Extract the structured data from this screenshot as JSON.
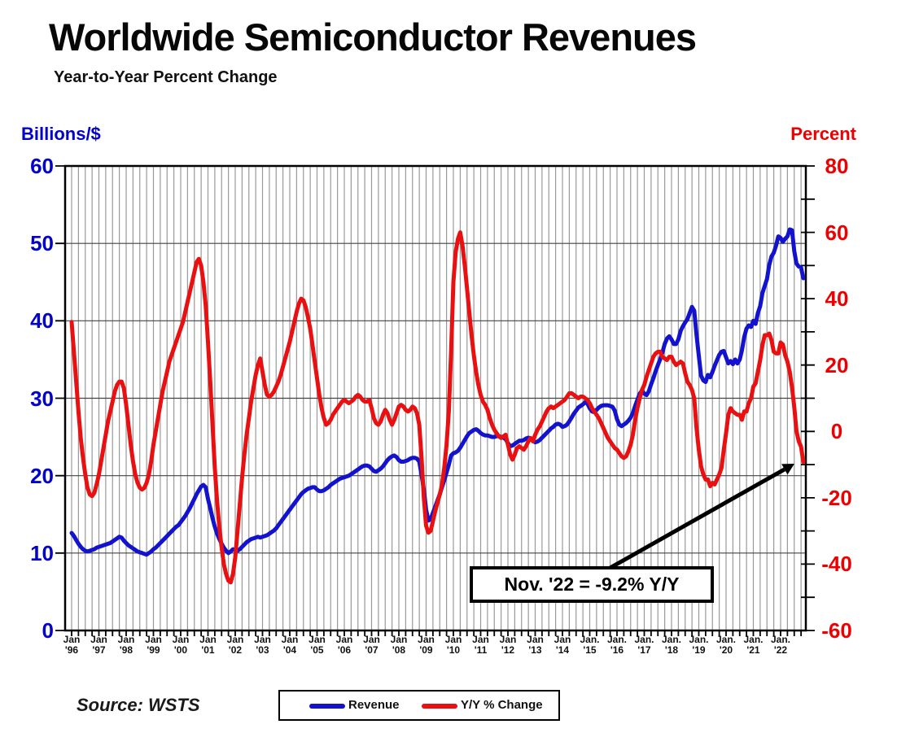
{
  "title": "Worldwide Semiconductor Revenues",
  "subtitle": "Year-to-Year Percent Change",
  "left_axis": {
    "label": "Billions/$",
    "color": "#0202cc",
    "ticks": [
      "60",
      "50",
      "40",
      "30",
      "20",
      "10",
      "0"
    ],
    "tick_values": [
      60,
      50,
      40,
      30,
      20,
      10,
      0
    ]
  },
  "right_axis": {
    "label": "Percent",
    "color": "#ee0000",
    "ticks": [
      "80",
      "60",
      "40",
      "20",
      "0",
      "-20",
      "-40",
      "-60"
    ],
    "tick_values": [
      80,
      60,
      40,
      20,
      0,
      -20,
      -40,
      -60
    ]
  },
  "x_axis": {
    "labels": [
      {
        "m": "Jan",
        "y": "'96"
      },
      {
        "m": "Jan",
        "y": "'97"
      },
      {
        "m": "Jan",
        "y": "'98"
      },
      {
        "m": "Jan",
        "y": "'99"
      },
      {
        "m": "Jan",
        "y": "'00"
      },
      {
        "m": "Jan",
        "y": "'01"
      },
      {
        "m": "Jan",
        "y": "'02"
      },
      {
        "m": "Jan",
        "y": "'03"
      },
      {
        "m": "Jan",
        "y": "'04"
      },
      {
        "m": "Jan",
        "y": "'05"
      },
      {
        "m": "Jan",
        "y": "'06"
      },
      {
        "m": "Jan",
        "y": "'07"
      },
      {
        "m": "Jan",
        "y": "'08"
      },
      {
        "m": "Jan",
        "y": "'09"
      },
      {
        "m": "Jan",
        "y": "'10"
      },
      {
        "m": "Jan",
        "y": "'11"
      },
      {
        "m": "Jan",
        "y": "'12"
      },
      {
        "m": "Jan",
        "y": "'13"
      },
      {
        "m": "Jan",
        "y": "'14"
      },
      {
        "m": "Jan.",
        "y": "'15"
      },
      {
        "m": "Jan.",
        "y": "'16"
      },
      {
        "m": "Jan.",
        "y": "'17"
      },
      {
        "m": "Jan.",
        "y": "'18"
      },
      {
        "m": "Jan.",
        "y": "'19"
      },
      {
        "m": "Jan.",
        "y": "'20"
      },
      {
        "m": "Jan.",
        "y": "'21"
      },
      {
        "m": "Jan.",
        "y": "'22"
      }
    ]
  },
  "annotation": {
    "text": "Nov. '22 = -9.2% Y/Y"
  },
  "source": {
    "text": "Source: WSTS"
  },
  "legend": {
    "items": [
      {
        "label": "Revenue",
        "color": "#1313ce"
      },
      {
        "label": "Y/Y % Change",
        "color": "#e81010"
      }
    ]
  },
  "chart_data": {
    "type": "line",
    "title": "Worldwide Semiconductor Revenues",
    "subtitle": "Year-to-Year Percent Change",
    "x_unit": "month",
    "x_start": "1996-01",
    "x_end": "2022-11",
    "x_tick_years": [
      "'96",
      "'97",
      "'98",
      "'99",
      "'00",
      "'01",
      "'02",
      "'03",
      "'04",
      "'05",
      "'06",
      "'07",
      "'08",
      "'09",
      "'10",
      "'11",
      "'12",
      "'13",
      "'14",
      "'15",
      "'16",
      "'17",
      "'18",
      "'19",
      "'20",
      "'21",
      "'22"
    ],
    "left_ylabel": "Billions/$",
    "right_ylabel": "Percent",
    "left_ylim": [
      0,
      60
    ],
    "right_ylim": [
      -60,
      80
    ],
    "gridlines": {
      "vertical": "quarterly",
      "horizontal_step_left_axis": 10
    },
    "series": [
      {
        "name": "Revenue",
        "axis": "left",
        "unit": "$B/month",
        "color": "#1313ce",
        "values": [
          12.6,
          12.2,
          11.7,
          11.2,
          10.8,
          10.5,
          10.3,
          10.2,
          10.3,
          10.4,
          10.5,
          10.7,
          10.8,
          10.9,
          11.0,
          11.1,
          11.2,
          11.3,
          11.5,
          11.7,
          11.9,
          12.1,
          12.0,
          11.6,
          11.3,
          11.0,
          10.8,
          10.6,
          10.4,
          10.2,
          10.1,
          10.0,
          9.9,
          9.8,
          10.0,
          10.2,
          10.5,
          10.7,
          11.0,
          11.3,
          11.6,
          11.9,
          12.2,
          12.5,
          12.8,
          13.1,
          13.4,
          13.6,
          14.0,
          14.4,
          14.8,
          15.3,
          15.8,
          16.4,
          17.0,
          17.6,
          18.1,
          18.6,
          18.8,
          18.5,
          17.0,
          15.8,
          14.5,
          13.4,
          12.5,
          11.8,
          11.2,
          10.7,
          10.3,
          10.0,
          10.2,
          10.5,
          10.4,
          10.3,
          10.5,
          10.8,
          11.1,
          11.4,
          11.6,
          11.8,
          11.9,
          12.0,
          12.1,
          12.0,
          12.1,
          12.2,
          12.3,
          12.5,
          12.7,
          12.9,
          13.2,
          13.6,
          14.0,
          14.4,
          14.8,
          15.2,
          15.6,
          16.0,
          16.4,
          16.8,
          17.2,
          17.6,
          17.9,
          18.1,
          18.3,
          18.4,
          18.5,
          18.5,
          18.2,
          18.0,
          18.0,
          18.1,
          18.3,
          18.5,
          18.8,
          19.0,
          19.2,
          19.4,
          19.6,
          19.7,
          19.8,
          19.9,
          20.0,
          20.2,
          20.4,
          20.6,
          20.8,
          21.0,
          21.2,
          21.3,
          21.3,
          21.2,
          20.9,
          20.6,
          20.5,
          20.7,
          20.9,
          21.2,
          21.6,
          22.0,
          22.3,
          22.5,
          22.6,
          22.4,
          22.0,
          21.8,
          21.8,
          21.9,
          22.0,
          22.2,
          22.3,
          22.3,
          22.2,
          21.8,
          20.1,
          18.2,
          15.6,
          14.2,
          14.4,
          15.2,
          16.0,
          16.8,
          17.6,
          18.5,
          19.4,
          20.4,
          21.4,
          22.6,
          22.9,
          23.0,
          23.2,
          23.6,
          24.1,
          24.6,
          25.1,
          25.5,
          25.7,
          25.9,
          26.0,
          25.8,
          25.5,
          25.3,
          25.2,
          25.2,
          25.1,
          25.0,
          25.0,
          25.1,
          25.1,
          25.0,
          24.9,
          24.7,
          24.2,
          23.8,
          23.9,
          24.1,
          24.3,
          24.5,
          24.5,
          24.6,
          24.8,
          24.9,
          24.8,
          24.5,
          24.3,
          24.4,
          24.6,
          24.9,
          25.2,
          25.5,
          25.8,
          26.1,
          26.3,
          26.6,
          26.7,
          26.6,
          26.3,
          26.4,
          26.6,
          27.0,
          27.5,
          28.0,
          28.4,
          28.8,
          29.0,
          29.2,
          29.5,
          29.3,
          28.7,
          28.3,
          28.2,
          28.5,
          28.8,
          29.0,
          29.1,
          29.1,
          29.1,
          29.0,
          28.9,
          28.4,
          27.3,
          26.6,
          26.4,
          26.6,
          26.8,
          27.1,
          27.5,
          28.1,
          29.0,
          29.8,
          30.6,
          31.0,
          30.6,
          30.4,
          30.9,
          31.8,
          32.6,
          33.5,
          34.3,
          35.0,
          35.9,
          37.0,
          37.7,
          38.0,
          37.6,
          37.0,
          37.0,
          37.6,
          38.7,
          39.3,
          39.8,
          40.2,
          41.0,
          41.8,
          41.3,
          38.2,
          35.5,
          32.9,
          32.3,
          32.1,
          33.0,
          32.7,
          33.4,
          34.2,
          34.9,
          35.6,
          36.0,
          36.1,
          35.3,
          34.5,
          34.8,
          34.4,
          35.0,
          34.5,
          35.0,
          36.2,
          37.9,
          39.0,
          39.4,
          39.2,
          40.0,
          39.6,
          41.0,
          41.9,
          43.6,
          44.5,
          45.4,
          47.2,
          48.3,
          48.8,
          49.7,
          50.9,
          50.7,
          50.2,
          50.6,
          50.9,
          51.8,
          51.7,
          49.0,
          47.4,
          47.0,
          46.9,
          45.5
        ]
      },
      {
        "name": "Y/Y % Change",
        "axis": "right",
        "unit": "%",
        "color": "#e81010",
        "values": [
          33,
          24,
          15,
          6,
          -2,
          -8,
          -13,
          -17,
          -19,
          -19.5,
          -18.5,
          -16,
          -13,
          -9,
          -5,
          -1,
          3,
          6,
          9,
          12,
          14,
          15,
          15,
          13,
          8,
          2,
          -4,
          -9,
          -13,
          -15.5,
          -17,
          -17.5,
          -17,
          -15.5,
          -13,
          -9,
          -4,
          0,
          4,
          8,
          12,
          15,
          18,
          21,
          23,
          25,
          27,
          29,
          31,
          33,
          36,
          39,
          42,
          45,
          48,
          51,
          52,
          50,
          45,
          38,
          27,
          15,
          2,
          -11,
          -21,
          -29,
          -35,
          -40,
          -43,
          -45,
          -45.5,
          -43,
          -38,
          -30,
          -22,
          -14,
          -7,
          -1,
          4,
          9,
          13,
          17,
          20,
          22,
          18,
          14,
          11,
          10.5,
          11,
          12,
          13.5,
          15,
          17,
          19.5,
          22,
          24.5,
          27,
          30,
          33,
          36,
          38.5,
          40,
          39.5,
          37.5,
          34.5,
          31,
          26,
          21,
          16,
          11,
          7,
          4,
          2,
          2.5,
          3.5,
          5,
          6,
          7,
          8,
          9,
          9.5,
          9,
          8.5,
          9,
          9.5,
          10.5,
          11,
          10.5,
          9.5,
          9,
          9,
          9.5,
          7,
          4,
          2.5,
          2,
          3,
          5,
          6.5,
          5.5,
          3.5,
          2,
          3.5,
          5.5,
          7.5,
          8,
          7.5,
          6.5,
          6,
          6.5,
          7.5,
          7,
          5.5,
          2,
          -8,
          -20,
          -28.5,
          -30.5,
          -30,
          -27,
          -24,
          -21.5,
          -19,
          -16,
          -11,
          -4,
          6,
          24,
          45,
          54,
          58,
          60,
          56,
          50,
          43,
          36,
          29,
          23,
          18,
          14,
          11,
          9,
          8,
          6.5,
          4,
          2,
          0.5,
          -0.5,
          -1.5,
          -2,
          -1.5,
          -1,
          -4,
          -7,
          -8.5,
          -7,
          -5,
          -4.5,
          -5,
          -5.5,
          -4.5,
          -3,
          -2,
          -3,
          -1,
          0.5,
          1.5,
          3,
          4.5,
          6,
          7,
          7.5,
          7,
          7.5,
          8,
          8.5,
          9,
          9.5,
          10.5,
          11.5,
          11.5,
          11,
          10.5,
          10,
          10.5,
          10.5,
          10,
          9.5,
          8.5,
          7,
          6,
          5,
          4,
          2.5,
          1,
          -0.5,
          -2,
          -3,
          -4,
          -5,
          -5.5,
          -6.5,
          -7.5,
          -8,
          -7.5,
          -6,
          -4,
          -1,
          3.5,
          7,
          10,
          12.5,
          14,
          16.5,
          18.5,
          20.5,
          22.5,
          23.5,
          24,
          24,
          22.5,
          22,
          21.5,
          22.5,
          22.5,
          21,
          20,
          20.5,
          21,
          20.5,
          17.5,
          15,
          14,
          12.5,
          10,
          1,
          -5.5,
          -10.5,
          -13,
          -14.5,
          -14.5,
          -16.5,
          -15.5,
          -16,
          -14.5,
          -13,
          -11,
          -5.5,
          -0.5,
          5,
          7,
          6,
          5.5,
          5,
          5,
          3.5,
          6,
          6,
          8.5,
          10,
          13.5,
          14.5,
          18,
          21.5,
          26,
          29,
          29,
          29.5,
          27.5,
          24,
          23.5,
          23.5,
          26.8,
          26.2,
          23,
          21,
          18,
          13.3,
          7.3,
          0.1,
          -3,
          -4.6,
          -9.2
        ]
      }
    ],
    "annotations": [
      {
        "text": "Nov. '22 = -9.2% Y/Y",
        "points_to": {
          "x": "2022-11",
          "series": "Y/Y % Change",
          "value": -9.2
        }
      }
    ]
  }
}
